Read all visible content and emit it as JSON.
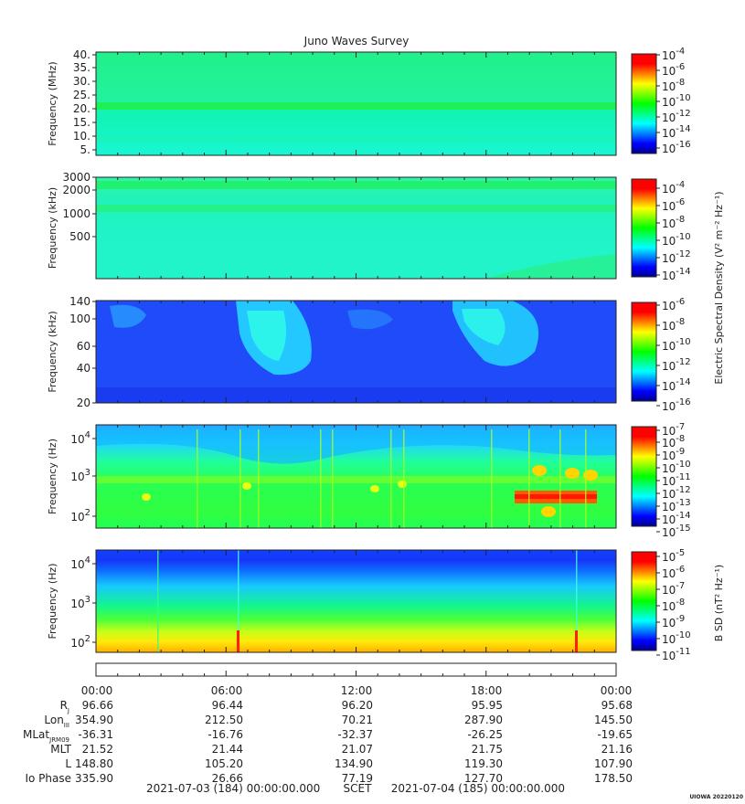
{
  "title": "Juno Waves Survey",
  "watermark": "UIOWA 20220120",
  "colors": {
    "colormap": [
      "#00008f",
      "#0000ff",
      "#0080ff",
      "#00ffff",
      "#00ff80",
      "#00ff00",
      "#80ff00",
      "#ffff00",
      "#ff8000",
      "#ff0000",
      "#ff0000"
    ],
    "axis": "#222222"
  },
  "panels": [
    {
      "id": "hfwbr",
      "ylabel": "Frequency (MHz)",
      "yticks": [
        "40.",
        "35.",
        "30.",
        "25.",
        "20.",
        "15.",
        "10.",
        "5."
      ],
      "cbar_ticks": [
        {
          "b": "10",
          "e": "-4"
        },
        {
          "b": "10",
          "e": "-6"
        },
        {
          "b": "10",
          "e": "-8"
        },
        {
          "b": "10",
          "e": "-10"
        },
        {
          "b": "10",
          "e": "-12"
        },
        {
          "b": "10",
          "e": "-14"
        },
        {
          "b": "10",
          "e": "-16"
        }
      ],
      "cbar_label": ""
    },
    {
      "id": "hfr-high",
      "ylabel": "Frequency (kHz)",
      "yticks": [
        "3000",
        "2000",
        "1000",
        "500"
      ],
      "cbar_ticks": [
        {
          "b": "10",
          "e": "-4"
        },
        {
          "b": "10",
          "e": "-6"
        },
        {
          "b": "10",
          "e": "-8"
        },
        {
          "b": "10",
          "e": "-10"
        },
        {
          "b": "10",
          "e": "-12"
        },
        {
          "b": "10",
          "e": "-14"
        }
      ],
      "cbar_label": ""
    },
    {
      "id": "hfr-low",
      "ylabel": "Frequency (kHz)",
      "yticks": [
        "140",
        "100",
        "60",
        "40",
        "20"
      ],
      "cbar_ticks": [
        {
          "b": "10",
          "e": "-6"
        },
        {
          "b": "10",
          "e": "-8"
        },
        {
          "b": "10",
          "e": "-10"
        },
        {
          "b": "10",
          "e": "-12"
        },
        {
          "b": "10",
          "e": "-14"
        },
        {
          "b": "10",
          "e": "-16"
        }
      ],
      "cbar_label": "Electric Spectral Density (V² m⁻² Hz⁻¹)"
    },
    {
      "id": "lfr-e",
      "ylabel": "Frequency (Hz)",
      "yticks": [
        {
          "b": "10",
          "e": "4"
        },
        {
          "b": "10",
          "e": "3"
        },
        {
          "b": "10",
          "e": "2"
        }
      ],
      "cbar_ticks": [
        {
          "b": "10",
          "e": "-7"
        },
        {
          "b": "10",
          "e": "-8"
        },
        {
          "b": "10",
          "e": "-9"
        },
        {
          "b": "10",
          "e": "-10"
        },
        {
          "b": "10",
          "e": "-11"
        },
        {
          "b": "10",
          "e": "-12"
        },
        {
          "b": "10",
          "e": "-13"
        },
        {
          "b": "10",
          "e": "-14"
        },
        {
          "b": "10",
          "e": "-15"
        }
      ],
      "cbar_label": ""
    },
    {
      "id": "lfr-b",
      "ylabel": "Frequency (Hz)",
      "yticks": [
        {
          "b": "10",
          "e": "4"
        },
        {
          "b": "10",
          "e": "3"
        },
        {
          "b": "10",
          "e": "2"
        }
      ],
      "cbar_ticks": [
        {
          "b": "10",
          "e": "-5"
        },
        {
          "b": "10",
          "e": "-6"
        },
        {
          "b": "10",
          "e": "-7"
        },
        {
          "b": "10",
          "e": "-8"
        },
        {
          "b": "10",
          "e": "-9"
        },
        {
          "b": "10",
          "e": "-10"
        },
        {
          "b": "10",
          "e": "-11"
        }
      ],
      "cbar_label": "B SD (nT² Hz⁻¹)"
    }
  ],
  "ephemeris": {
    "time_labels": [
      "00:00",
      "06:00",
      "12:00",
      "18:00",
      "00:00"
    ],
    "rows": [
      {
        "label": "R",
        "sub": "J",
        "values": [
          "96.66",
          "96.44",
          "96.20",
          "95.95",
          "95.68"
        ]
      },
      {
        "label": "Lon",
        "sub": "III",
        "values": [
          "354.90",
          "212.50",
          "70.21",
          "287.90",
          "145.50"
        ]
      },
      {
        "label": "MLat",
        "sub": "JRM09",
        "values": [
          "-36.31",
          "-16.76",
          "-32.37",
          "-26.25",
          "-19.65"
        ]
      },
      {
        "label": "MLT",
        "sub": "",
        "values": [
          "21.52",
          "21.44",
          "21.07",
          "21.75",
          "21.16"
        ]
      },
      {
        "label": "L",
        "sub": "",
        "values": [
          "148.80",
          "105.20",
          "134.90",
          "119.30",
          "107.90"
        ]
      },
      {
        "label": "Io Phase",
        "sub": "",
        "values": [
          "335.90",
          "26.66",
          "77.19",
          "127.70",
          "178.50"
        ]
      }
    ],
    "footer_start": "2021-07-03 (184) 00:00:00.000",
    "footer_mid": "SCET",
    "footer_end": "2021-07-04 (185) 00:00:00.000"
  },
  "chart_data": [
    {
      "type": "heatmap",
      "title": "Juno Waves Survey",
      "ylabel": "Frequency (MHz)",
      "x_range": [
        "2021-07-03 00:00",
        "2021-07-04 00:00"
      ],
      "ylim": [
        3,
        41
      ],
      "y_ticks": [
        5,
        10,
        15,
        20,
        25,
        30,
        35,
        40
      ],
      "colorbar_range": [
        "1e-16",
        "1e-4"
      ],
      "features": [
        {
          "kind": "band",
          "y": 21,
          "level": "1e-12"
        }
      ]
    },
    {
      "type": "heatmap",
      "ylabel": "Frequency (kHz)",
      "y_scale": "log",
      "ylim": [
        150,
        3000
      ],
      "y_ticks": [
        500,
        1000,
        2000,
        3000
      ],
      "colorbar_range": [
        "1e-15",
        "1e-4"
      ],
      "features": [
        {
          "kind": "band",
          "y": 2200,
          "level": "1e-12"
        },
        {
          "kind": "band",
          "y": 1150,
          "level": "1e-12"
        },
        {
          "kind": "drift",
          "x_start": "2021-07-03 18:00",
          "x_end": "2021-07-04 00:00",
          "y_start": 150,
          "y_end": 200
        }
      ]
    },
    {
      "type": "heatmap",
      "ylabel": "Frequency (kHz)",
      "ylim": [
        20,
        140
      ],
      "y_ticks": [
        20,
        40,
        60,
        100,
        140
      ],
      "colorbar_range": [
        "1e-16",
        "1e-6"
      ],
      "colorbar_label": "Electric Spectral Density (V^2 m^-2 Hz^-1)",
      "features": [
        {
          "kind": "emission",
          "x_start": "2021-07-03 06:00",
          "x_end": "2021-07-03 10:00",
          "y_min": 40,
          "y_max": 140,
          "level": "1e-13"
        },
        {
          "kind": "emission",
          "x_start": "2021-07-03 17:00",
          "x_end": "2021-07-03 20:00",
          "y_min": 45,
          "y_max": 140,
          "level": "1e-13"
        }
      ]
    },
    {
      "type": "heatmap",
      "ylabel": "Frequency (Hz)",
      "y_scale": "log",
      "ylim": [
        50,
        20000
      ],
      "y_ticks": [
        100,
        1000,
        10000
      ],
      "colorbar_range": [
        "1e-15",
        "1e-7"
      ],
      "features": [
        {
          "kind": "band",
          "x_start": "2021-07-03 19:00",
          "x_end": "2021-07-03 23:00",
          "y": 400,
          "level": "1e-8"
        }
      ]
    },
    {
      "type": "heatmap",
      "ylabel": "Frequency (Hz)",
      "y_scale": "log",
      "ylim": [
        50,
        20000
      ],
      "y_ticks": [
        100,
        1000,
        10000
      ],
      "colorbar_range": [
        "1e-11",
        "1e-5"
      ],
      "colorbar_label": "B SD (nT^2 Hz^-1)"
    }
  ]
}
